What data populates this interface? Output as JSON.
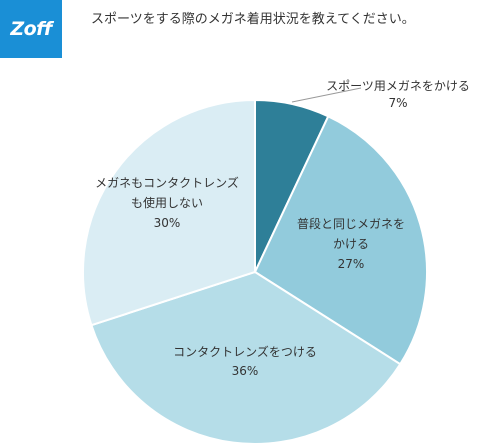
{
  "brand": {
    "logo_text": "Zoff",
    "logo_color": "#1a8fd6"
  },
  "question": "スポーツをする際のメガネ着用状況を教えてください。",
  "chart_data": {
    "type": "pie",
    "title": "スポーツをする際のメガネ着用状況を教えてください。",
    "slices": [
      {
        "label_lines": [
          "スポーツ用メガネをかける"
        ],
        "value_label": "7%",
        "value": 7,
        "color": "#2e7f98"
      },
      {
        "label_lines": [
          "普段と同じメガネを",
          "かける"
        ],
        "value_label": "27%",
        "value": 27,
        "color": "#92cbdc"
      },
      {
        "label_lines": [
          "コンタクトレンズをつける"
        ],
        "value_label": "36%",
        "value": 36,
        "color": "#b5dde8"
      },
      {
        "label_lines": [
          "メガネもコンタクトレンズ",
          "も使用しない"
        ],
        "value_label": "30%",
        "value": 30,
        "color": "#daedf4"
      }
    ],
    "start": "12 o'clock",
    "direction": "clockwise",
    "edge_color": "#ffffff"
  }
}
